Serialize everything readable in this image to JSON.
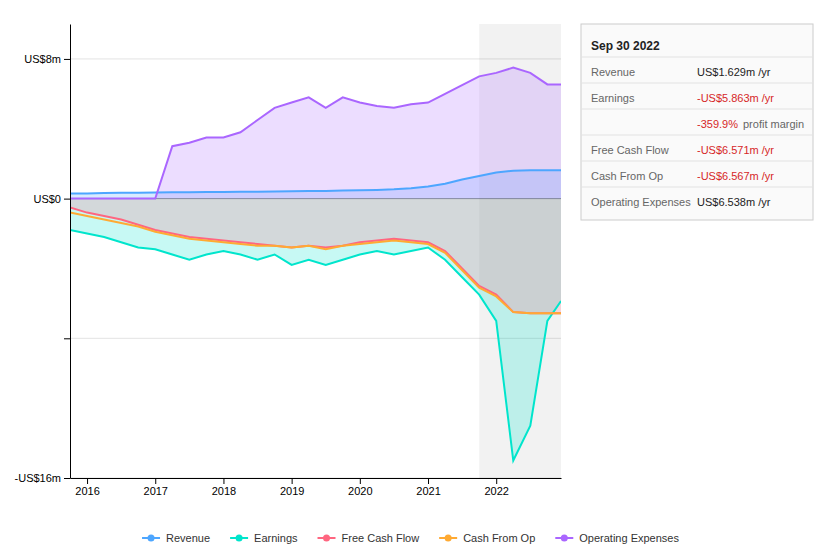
{
  "chart_data": {
    "type": "area",
    "x": [
      2015.75,
      2016.0,
      2016.25,
      2016.5,
      2016.75,
      2017.0,
      2017.25,
      2017.5,
      2017.75,
      2018.0,
      2018.25,
      2018.5,
      2018.75,
      2019.0,
      2019.25,
      2019.5,
      2019.75,
      2020.0,
      2020.25,
      2020.5,
      2020.75,
      2021.0,
      2021.25,
      2021.5,
      2021.75,
      2022.0,
      2022.25,
      2022.5,
      2022.75,
      2022.95
    ],
    "series": [
      {
        "name": "Revenue",
        "color": "#4da6ff",
        "type": "area",
        "values": [
          0.3,
          0.3,
          0.32,
          0.33,
          0.34,
          0.35,
          0.36,
          0.37,
          0.38,
          0.38,
          0.39,
          0.4,
          0.41,
          0.42,
          0.43,
          0.44,
          0.46,
          0.48,
          0.5,
          0.53,
          0.6,
          0.7,
          0.85,
          1.1,
          1.3,
          1.5,
          1.6,
          1.62,
          1.629,
          1.629
        ]
      },
      {
        "name": "Earnings",
        "color": "#00e5cc",
        "type": "area",
        "values": [
          -1.8,
          -2.0,
          -2.2,
          -2.5,
          -2.8,
          -2.9,
          -3.2,
          -3.5,
          -3.2,
          -3.0,
          -3.2,
          -3.5,
          -3.2,
          -3.8,
          -3.5,
          -3.8,
          -3.5,
          -3.2,
          -3.0,
          -3.2,
          -3.0,
          -2.8,
          -3.5,
          -4.5,
          -5.5,
          -7.0,
          -15.0,
          -13.0,
          -7.0,
          -5.863
        ]
      },
      {
        "name": "Free Cash Flow",
        "color": "#ff6680",
        "type": "area",
        "values": [
          -0.5,
          -0.8,
          -1.0,
          -1.2,
          -1.5,
          -1.8,
          -2.0,
          -2.2,
          -2.3,
          -2.4,
          -2.5,
          -2.6,
          -2.7,
          -2.8,
          -2.7,
          -2.8,
          -2.7,
          -2.5,
          -2.4,
          -2.3,
          -2.4,
          -2.5,
          -3.0,
          -4.0,
          -5.0,
          -5.5,
          -6.5,
          -6.571,
          -6.571,
          -6.571
        ]
      },
      {
        "name": "Cash From Op",
        "color": "#ffaa33",
        "type": "line",
        "values": [
          -0.8,
          -1.0,
          -1.2,
          -1.4,
          -1.6,
          -1.9,
          -2.1,
          -2.3,
          -2.4,
          -2.5,
          -2.6,
          -2.7,
          -2.7,
          -2.8,
          -2.7,
          -2.9,
          -2.7,
          -2.6,
          -2.5,
          -2.4,
          -2.5,
          -2.6,
          -3.1,
          -4.1,
          -5.1,
          -5.6,
          -6.5,
          -6.567,
          -6.567,
          -6.567
        ]
      },
      {
        "name": "Operating Expenses",
        "color": "#aa66ff",
        "type": "area",
        "values": [
          0.0,
          0.0,
          0.0,
          0.0,
          0.0,
          0.0,
          3.0,
          3.2,
          3.5,
          3.5,
          3.8,
          4.5,
          5.2,
          5.5,
          5.8,
          5.2,
          5.8,
          5.5,
          5.3,
          5.2,
          5.4,
          5.5,
          6.0,
          6.5,
          7.0,
          7.2,
          7.5,
          7.2,
          6.538,
          6.538
        ]
      }
    ],
    "xlim": [
      2015.75,
      2022.95
    ],
    "xticks": [
      2016,
      2017,
      2018,
      2019,
      2020,
      2021,
      2022
    ],
    "ylim": [
      -16,
      10
    ],
    "yticks": [
      {
        "value": -16,
        "label": "-US$16m"
      },
      {
        "value": -8,
        "label": null
      },
      {
        "value": 0,
        "label": "US$0"
      },
      {
        "value": 8,
        "label": "US$8m"
      }
    ],
    "highlight_start": 2021.75,
    "grid": true,
    "legend": "bottom",
    "annotations": [
      [
        "Sep 30 2022"
      ],
      [
        "Revenue",
        "US$1.629m /yr"
      ],
      [
        "Earnings",
        "-US$5.863m /yr"
      ],
      [
        "-359.9%",
        "profit margin"
      ],
      [
        "Free Cash Flow",
        "-US$6.571m /yr"
      ],
      [
        "Cash From Op",
        "-US$6.567m /yr"
      ],
      [
        "Operating Expenses",
        "US$6.538m /yr"
      ]
    ]
  }
}
